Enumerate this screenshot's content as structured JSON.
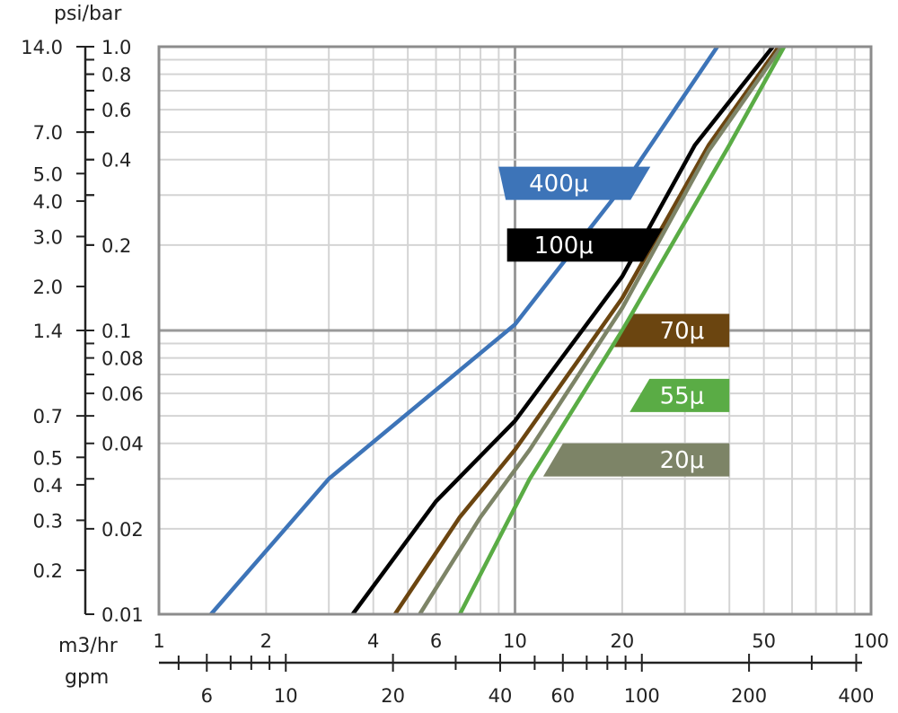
{
  "chart_data": {
    "type": "line",
    "scale": "log-log",
    "grid": true,
    "x_primary": {
      "label": "m3/hr",
      "range": [
        1,
        100
      ],
      "ticks": [
        1,
        2,
        4,
        6,
        10,
        20,
        50,
        100
      ],
      "tick_labels": [
        "1",
        "2",
        "4",
        "6",
        "10",
        "20",
        "50",
        "100"
      ]
    },
    "x_secondary": {
      "label": "gpm",
      "ticks": [
        6,
        10,
        20,
        40,
        60,
        100,
        200,
        400
      ],
      "tick_labels": [
        "6",
        "10",
        "20",
        "40",
        "60",
        "100",
        "200",
        "400"
      ],
      "minor_ticks": [
        5,
        7,
        8,
        9,
        30,
        50,
        70,
        80,
        90,
        300
      ]
    },
    "y_primary": {
      "label": "bar",
      "range": [
        0.01,
        1.0
      ],
      "ticks": [
        0.01,
        0.02,
        0.04,
        0.06,
        0.08,
        0.1,
        0.2,
        0.4,
        0.6,
        0.8,
        1.0
      ],
      "tick_labels": [
        "0.01",
        "0.02",
        "0.04",
        "0.06",
        "0.08",
        "0.1",
        "0.2",
        "0.4",
        "0.6",
        "0.8",
        "1.0"
      ]
    },
    "y_secondary": {
      "label": "psi/bar",
      "ticks": [
        0.2,
        0.3,
        0.4,
        0.5,
        0.7,
        1.4,
        2.0,
        3.0,
        4.0,
        5.0,
        7.0,
        14.0
      ],
      "tick_labels": [
        "0.2",
        "0.3",
        "0.4",
        "0.5",
        "0.7",
        "1.4",
        "2.0",
        "3.0",
        "4.0",
        "5.0",
        "7.0",
        "14.0"
      ]
    },
    "series": [
      {
        "name": "400μ",
        "color": "#3d74b8",
        "points": [
          [
            1.4,
            0.01
          ],
          [
            3,
            0.03
          ],
          [
            10,
            0.105
          ],
          [
            20,
            0.32
          ],
          [
            37,
            1.0
          ]
        ]
      },
      {
        "name": "100μ",
        "color": "#000000",
        "points": [
          [
            3.5,
            0.01
          ],
          [
            6,
            0.025
          ],
          [
            10,
            0.048
          ],
          [
            20,
            0.155
          ],
          [
            32,
            0.45
          ],
          [
            53,
            1.0
          ]
        ]
      },
      {
        "name": "70μ",
        "color": "#6b4510",
        "points": [
          [
            4.6,
            0.01
          ],
          [
            7,
            0.022
          ],
          [
            10,
            0.038
          ],
          [
            20,
            0.13
          ],
          [
            35,
            0.45
          ],
          [
            55,
            1.0
          ]
        ]
      },
      {
        "name": "20μ",
        "color": "#7d8467",
        "points": [
          [
            5.4,
            0.01
          ],
          [
            8,
            0.022
          ],
          [
            11,
            0.038
          ],
          [
            20,
            0.12
          ],
          [
            35,
            0.43
          ],
          [
            56,
            1.0
          ]
        ]
      },
      {
        "name": "55μ",
        "color": "#5aac45",
        "points": [
          [
            7.0,
            0.01
          ],
          [
            11,
            0.03
          ],
          [
            20,
            0.1
          ],
          [
            40,
            0.45
          ],
          [
            57,
            1.0
          ]
        ]
      }
    ],
    "badges": [
      {
        "series": "400μ",
        "label": "400μ",
        "color": "#3d74b8",
        "x_range": [
          9.2,
          24
        ],
        "y_center": 0.33
      },
      {
        "series": "100μ",
        "label": "100μ",
        "color": "#000000",
        "x_range": [
          9.5,
          26
        ],
        "y_center": 0.2
      },
      {
        "series": "70μ",
        "label": "70μ",
        "color": "#6b4510",
        "x_range": [
          19,
          40
        ],
        "y_center": 0.1
      },
      {
        "series": "55μ",
        "label": "55μ",
        "color": "#5aac45",
        "x_range": [
          21,
          40
        ],
        "y_center": 0.059
      },
      {
        "series": "20μ",
        "label": "20μ",
        "color": "#7d8467",
        "x_range": [
          12,
          40
        ],
        "y_center": 0.035
      }
    ]
  }
}
